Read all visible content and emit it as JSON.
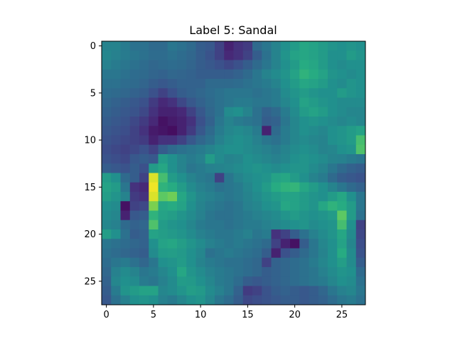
{
  "chart_data": {
    "type": "heatmap",
    "title": "Label 5: Sandal",
    "xlabel": "",
    "ylabel": "",
    "grid": false,
    "colormap": "viridis",
    "rows": 28,
    "cols": 28,
    "x_range": [
      -0.5,
      27.5
    ],
    "y_range": [
      27.5,
      -0.5
    ],
    "x_ticks": [
      0,
      5,
      10,
      15,
      20,
      25
    ],
    "y_ticks": [
      0,
      5,
      10,
      15,
      20,
      25
    ],
    "value_range": [
      0,
      1
    ],
    "values": [
      [
        0.45,
        0.45,
        0.42,
        0.38,
        0.38,
        0.35,
        0.35,
        0.4,
        0.38,
        0.35,
        0.3,
        0.28,
        0.2,
        0.1,
        0.15,
        0.18,
        0.35,
        0.4,
        0.45,
        0.5,
        0.55,
        0.6,
        0.58,
        0.55,
        0.52,
        0.5,
        0.52,
        0.5
      ],
      [
        0.46,
        0.44,
        0.42,
        0.4,
        0.38,
        0.36,
        0.36,
        0.38,
        0.36,
        0.34,
        0.3,
        0.26,
        0.2,
        0.12,
        0.15,
        0.2,
        0.3,
        0.38,
        0.45,
        0.52,
        0.58,
        0.6,
        0.58,
        0.55,
        0.5,
        0.5,
        0.55,
        0.52
      ],
      [
        0.44,
        0.42,
        0.4,
        0.38,
        0.36,
        0.34,
        0.35,
        0.36,
        0.35,
        0.33,
        0.3,
        0.28,
        0.25,
        0.22,
        0.25,
        0.3,
        0.35,
        0.4,
        0.45,
        0.5,
        0.55,
        0.62,
        0.6,
        0.55,
        0.5,
        0.48,
        0.5,
        0.5
      ],
      [
        0.4,
        0.4,
        0.38,
        0.36,
        0.35,
        0.33,
        0.32,
        0.34,
        0.33,
        0.32,
        0.3,
        0.3,
        0.3,
        0.3,
        0.32,
        0.35,
        0.4,
        0.45,
        0.48,
        0.52,
        0.58,
        0.65,
        0.62,
        0.58,
        0.52,
        0.5,
        0.48,
        0.5
      ],
      [
        0.38,
        0.38,
        0.36,
        0.35,
        0.33,
        0.3,
        0.28,
        0.3,
        0.32,
        0.32,
        0.32,
        0.35,
        0.35,
        0.35,
        0.36,
        0.38,
        0.4,
        0.42,
        0.45,
        0.5,
        0.55,
        0.6,
        0.58,
        0.55,
        0.5,
        0.48,
        0.52,
        0.5
      ],
      [
        0.36,
        0.35,
        0.34,
        0.32,
        0.3,
        0.25,
        0.2,
        0.25,
        0.3,
        0.32,
        0.34,
        0.36,
        0.38,
        0.4,
        0.4,
        0.4,
        0.38,
        0.4,
        0.42,
        0.48,
        0.52,
        0.55,
        0.52,
        0.5,
        0.5,
        0.55,
        0.52,
        0.5
      ],
      [
        0.34,
        0.32,
        0.3,
        0.28,
        0.25,
        0.18,
        0.12,
        0.15,
        0.22,
        0.28,
        0.32,
        0.35,
        0.38,
        0.4,
        0.42,
        0.42,
        0.4,
        0.4,
        0.42,
        0.46,
        0.5,
        0.58,
        0.55,
        0.52,
        0.5,
        0.48,
        0.48,
        0.48
      ],
      [
        0.32,
        0.3,
        0.28,
        0.26,
        0.22,
        0.15,
        0.1,
        0.1,
        0.12,
        0.2,
        0.28,
        0.34,
        0.38,
        0.48,
        0.5,
        0.45,
        0.38,
        0.32,
        0.35,
        0.42,
        0.48,
        0.55,
        0.58,
        0.55,
        0.5,
        0.48,
        0.46,
        0.46
      ],
      [
        0.3,
        0.28,
        0.26,
        0.22,
        0.18,
        0.12,
        0.05,
        0.08,
        0.1,
        0.15,
        0.25,
        0.32,
        0.4,
        0.45,
        0.42,
        0.4,
        0.38,
        0.3,
        0.32,
        0.4,
        0.46,
        0.5,
        0.52,
        0.5,
        0.48,
        0.46,
        0.48,
        0.46
      ],
      [
        0.28,
        0.26,
        0.24,
        0.2,
        0.15,
        0.08,
        0.06,
        0.04,
        0.1,
        0.18,
        0.28,
        0.35,
        0.42,
        0.46,
        0.48,
        0.46,
        0.42,
        0.1,
        0.35,
        0.42,
        0.46,
        0.5,
        0.48,
        0.46,
        0.5,
        0.52,
        0.55,
        0.58
      ],
      [
        0.26,
        0.24,
        0.22,
        0.2,
        0.18,
        0.1,
        0.15,
        0.15,
        0.2,
        0.28,
        0.34,
        0.38,
        0.44,
        0.48,
        0.5,
        0.48,
        0.44,
        0.4,
        0.38,
        0.42,
        0.46,
        0.48,
        0.46,
        0.45,
        0.5,
        0.52,
        0.55,
        0.7
      ],
      [
        0.24,
        0.22,
        0.2,
        0.22,
        0.25,
        0.2,
        0.3,
        0.35,
        0.38,
        0.4,
        0.42,
        0.45,
        0.48,
        0.5,
        0.5,
        0.48,
        0.46,
        0.44,
        0.42,
        0.45,
        0.48,
        0.5,
        0.48,
        0.45,
        0.46,
        0.5,
        0.52,
        0.72
      ],
      [
        0.26,
        0.24,
        0.22,
        0.28,
        0.3,
        0.28,
        0.55,
        0.5,
        0.45,
        0.42,
        0.44,
        0.55,
        0.48,
        0.45,
        0.46,
        0.5,
        0.48,
        0.46,
        0.44,
        0.46,
        0.5,
        0.52,
        0.5,
        0.48,
        0.45,
        0.44,
        0.42,
        0.4
      ],
      [
        0.3,
        0.28,
        0.26,
        0.3,
        0.25,
        0.55,
        0.6,
        0.5,
        0.45,
        0.4,
        0.42,
        0.44,
        0.45,
        0.46,
        0.48,
        0.5,
        0.52,
        0.5,
        0.48,
        0.5,
        0.52,
        0.52,
        0.48,
        0.45,
        0.4,
        0.35,
        0.32,
        0.3
      ],
      [
        0.55,
        0.5,
        0.35,
        0.3,
        0.2,
        0.95,
        0.7,
        0.55,
        0.5,
        0.45,
        0.42,
        0.4,
        0.2,
        0.4,
        0.45,
        0.48,
        0.5,
        0.52,
        0.58,
        0.6,
        0.55,
        0.5,
        0.45,
        0.42,
        0.35,
        0.3,
        0.28,
        0.26
      ],
      [
        0.58,
        0.55,
        0.4,
        0.15,
        0.12,
        0.98,
        0.65,
        0.62,
        0.55,
        0.48,
        0.44,
        0.42,
        0.38,
        0.4,
        0.42,
        0.46,
        0.5,
        0.55,
        0.62,
        0.65,
        0.66,
        0.6,
        0.55,
        0.5,
        0.45,
        0.4,
        0.35,
        0.32
      ],
      [
        0.56,
        0.52,
        0.45,
        0.18,
        0.15,
        0.95,
        0.75,
        0.78,
        0.6,
        0.52,
        0.46,
        0.44,
        0.42,
        0.4,
        0.42,
        0.45,
        0.48,
        0.52,
        0.55,
        0.58,
        0.58,
        0.55,
        0.52,
        0.5,
        0.55,
        0.6,
        0.5,
        0.4
      ],
      [
        0.5,
        0.48,
        0.05,
        0.2,
        0.22,
        0.8,
        0.6,
        0.62,
        0.58,
        0.5,
        0.45,
        0.42,
        0.4,
        0.38,
        0.4,
        0.44,
        0.46,
        0.5,
        0.52,
        0.6,
        0.58,
        0.55,
        0.52,
        0.6,
        0.65,
        0.62,
        0.55,
        0.4
      ],
      [
        0.48,
        0.46,
        0.1,
        0.28,
        0.3,
        0.65,
        0.58,
        0.56,
        0.52,
        0.48,
        0.44,
        0.4,
        0.38,
        0.38,
        0.4,
        0.42,
        0.44,
        0.46,
        0.48,
        0.52,
        0.55,
        0.52,
        0.5,
        0.52,
        0.55,
        0.75,
        0.55,
        0.38
      ],
      [
        0.46,
        0.44,
        0.35,
        0.32,
        0.34,
        0.72,
        0.55,
        0.52,
        0.5,
        0.46,
        0.42,
        0.4,
        0.4,
        0.38,
        0.4,
        0.42,
        0.42,
        0.44,
        0.46,
        0.48,
        0.5,
        0.52,
        0.48,
        0.5,
        0.52,
        0.7,
        0.5,
        0.2
      ],
      [
        0.56,
        0.5,
        0.38,
        0.3,
        0.32,
        0.58,
        0.56,
        0.54,
        0.52,
        0.48,
        0.44,
        0.42,
        0.4,
        0.4,
        0.42,
        0.44,
        0.4,
        0.42,
        0.15,
        0.2,
        0.3,
        0.38,
        0.44,
        0.48,
        0.52,
        0.6,
        0.48,
        0.22
      ],
      [
        0.4,
        0.38,
        0.36,
        0.34,
        0.32,
        0.5,
        0.58,
        0.6,
        0.56,
        0.52,
        0.48,
        0.44,
        0.42,
        0.4,
        0.42,
        0.4,
        0.38,
        0.35,
        0.2,
        0.1,
        0.05,
        0.3,
        0.4,
        0.46,
        0.5,
        0.58,
        0.46,
        0.24
      ],
      [
        0.38,
        0.36,
        0.34,
        0.32,
        0.3,
        0.48,
        0.55,
        0.56,
        0.54,
        0.5,
        0.46,
        0.38,
        0.4,
        0.42,
        0.4,
        0.38,
        0.36,
        0.3,
        0.1,
        0.25,
        0.3,
        0.35,
        0.4,
        0.45,
        0.5,
        0.62,
        0.48,
        0.26
      ],
      [
        0.36,
        0.4,
        0.42,
        0.38,
        0.34,
        0.4,
        0.5,
        0.52,
        0.55,
        0.5,
        0.45,
        0.42,
        0.4,
        0.38,
        0.38,
        0.36,
        0.34,
        0.2,
        0.32,
        0.34,
        0.36,
        0.38,
        0.42,
        0.46,
        0.5,
        0.56,
        0.48,
        0.3
      ],
      [
        0.34,
        0.44,
        0.48,
        0.45,
        0.4,
        0.42,
        0.46,
        0.5,
        0.6,
        0.52,
        0.48,
        0.44,
        0.42,
        0.4,
        0.38,
        0.36,
        0.34,
        0.3,
        0.32,
        0.34,
        0.36,
        0.38,
        0.4,
        0.44,
        0.48,
        0.52,
        0.5,
        0.35
      ],
      [
        0.32,
        0.46,
        0.5,
        0.48,
        0.42,
        0.4,
        0.44,
        0.48,
        0.55,
        0.54,
        0.5,
        0.46,
        0.42,
        0.4,
        0.36,
        0.3,
        0.28,
        0.3,
        0.32,
        0.34,
        0.36,
        0.38,
        0.4,
        0.42,
        0.46,
        0.5,
        0.48,
        0.38
      ],
      [
        0.3,
        0.42,
        0.52,
        0.55,
        0.58,
        0.58,
        0.46,
        0.48,
        0.52,
        0.56,
        0.54,
        0.48,
        0.44,
        0.4,
        0.32,
        0.18,
        0.2,
        0.26,
        0.3,
        0.32,
        0.3,
        0.28,
        0.3,
        0.34,
        0.4,
        0.44,
        0.46,
        0.4
      ],
      [
        0.28,
        0.38,
        0.44,
        0.5,
        0.52,
        0.5,
        0.44,
        0.42,
        0.46,
        0.5,
        0.52,
        0.46,
        0.4,
        0.36,
        0.3,
        0.22,
        0.24,
        0.26,
        0.28,
        0.3,
        0.3,
        0.28,
        0.3,
        0.32,
        0.36,
        0.4,
        0.42,
        0.38
      ]
    ]
  }
}
